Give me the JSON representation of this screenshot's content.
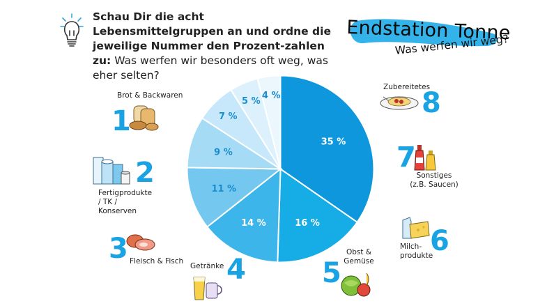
{
  "intro": {
    "bold": "Schau Dir die acht Lebensmittelgruppen an und ordne die jeweilige Nummer den Prozent-zahlen zu:",
    "regular": " Was werfen wir besonders oft weg, was eher selten?"
  },
  "brand": {
    "title": "Endstation Tonne",
    "subtitle": "Was werfen wir weg?"
  },
  "categories": [
    {
      "num": "1",
      "label": "Brot & Backwaren",
      "icon": "bread-icon"
    },
    {
      "num": "2",
      "label": "Fertigprodukte / TK / Konserven",
      "icon": "cans-icon"
    },
    {
      "num": "3",
      "label": "Fleisch & Fisch",
      "icon": "meat-icon"
    },
    {
      "num": "4",
      "label": "Getränke",
      "icon": "drinks-icon"
    },
    {
      "num": "5",
      "label": "Obst & Gemüse",
      "icon": "vegetables-icon"
    },
    {
      "num": "6",
      "label": "Milch-produkte",
      "icon": "dairy-icon"
    },
    {
      "num": "7",
      "label": "Sonstiges (z.B. Saucen)",
      "icon": "sauces-icon"
    },
    {
      "num": "8",
      "label": "Zubereitetes",
      "icon": "plate-icon"
    }
  ],
  "chart_data": {
    "type": "pie",
    "values": [
      35,
      16,
      14,
      11,
      9,
      7,
      5,
      4
    ],
    "labels": [
      "35 %",
      "16 %",
      "14 %",
      "11 %",
      "9 %",
      "7 %",
      "5 %",
      "4 %"
    ],
    "colors": [
      "#0f97dd",
      "#16ace6",
      "#3bb5ea",
      "#74c8f0",
      "#a6dbf6",
      "#c6e8fa",
      "#dcf1fc",
      "#ebf7fd"
    ]
  }
}
